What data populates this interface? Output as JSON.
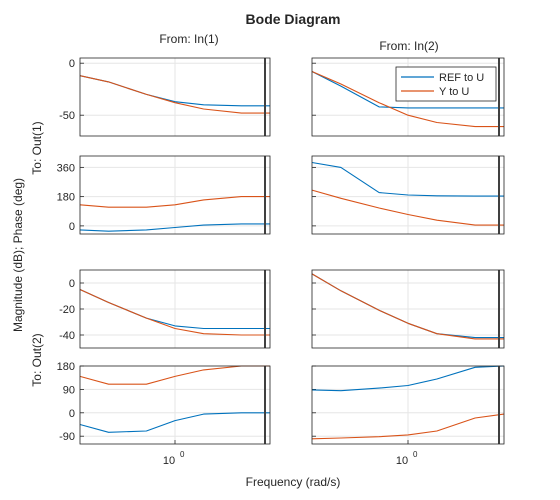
{
  "chart_data": {
    "type": "line",
    "title": "Bode Diagram",
    "xlabel": "Frequency (rad/s)",
    "ylabel": "Magnitude (dB); Phase (deg)",
    "x_scale": "log",
    "xlim": [
      0.1,
      10
    ],
    "x_ticks": [
      {
        "value": 1,
        "base": "10",
        "exp": "0"
      }
    ],
    "grid": true,
    "legend": {
      "location": "top-right",
      "entries": [
        {
          "name": "REF to U",
          "color": "#0072BD"
        },
        {
          "name": "Y to U",
          "color": "#D95319"
        }
      ]
    },
    "column_labels": [
      "From: In(1)",
      "From: In(2)"
    ],
    "row_labels": [
      "To: Out(1)",
      "To: Out(2)"
    ],
    "frequency_samples": [
      0.1,
      0.2,
      0.5,
      1,
      2,
      5,
      10
    ],
    "panels": [
      {
        "output": "Out(1)",
        "input": "In(1)",
        "quantity": "magnitude",
        "ylim": [
          -70,
          5
        ],
        "yticks": [
          0,
          -50
        ],
        "series": [
          {
            "name": "REF to U",
            "values": [
              -12,
              -18,
              -30,
              -37,
              -40,
              -41,
              -41
            ]
          },
          {
            "name": "Y to U",
            "values": [
              -12,
              -18,
              -30,
              -38,
              -44,
              -48,
              -48
            ]
          }
        ]
      },
      {
        "output": "Out(1)",
        "input": "In(2)",
        "quantity": "magnitude",
        "ylim": [
          -70,
          5
        ],
        "yticks": [
          0,
          -50
        ],
        "series": [
          {
            "name": "REF to U",
            "values": [
              -8,
              -22,
              -42,
              -43,
              -43,
              -43,
              -43
            ]
          },
          {
            "name": "Y to U",
            "values": [
              -8,
              -20,
              -38,
              -50,
              -57,
              -61,
              -61
            ]
          }
        ]
      },
      {
        "output": "Out(1)",
        "input": "In(1)",
        "quantity": "phase",
        "ylim": [
          -50,
          430
        ],
        "yticks": [
          360,
          180,
          0
        ],
        "series": [
          {
            "name": "REF to U",
            "values": [
              -25,
              -33,
              -25,
              -10,
              5,
              12,
              12
            ]
          },
          {
            "name": "Y to U",
            "values": [
              130,
              115,
              115,
              130,
              160,
              180,
              180
            ]
          }
        ]
      },
      {
        "output": "Out(1)",
        "input": "In(2)",
        "quantity": "phase",
        "ylim": [
          -50,
          430
        ],
        "yticks": [
          360,
          180,
          0
        ],
        "series": [
          {
            "name": "REF to U",
            "values": [
              390,
              360,
              205,
              190,
              185,
              183,
              183
            ]
          },
          {
            "name": "Y to U",
            "values": [
              220,
              170,
              110,
              70,
              35,
              5,
              5
            ]
          }
        ]
      },
      {
        "output": "Out(2)",
        "input": "In(1)",
        "quantity": "magnitude",
        "ylim": [
          -50,
          10
        ],
        "yticks": [
          0,
          -20,
          -40
        ],
        "series": [
          {
            "name": "REF to U",
            "values": [
              -5,
              -15,
              -27,
              -33,
              -35,
              -35,
              -35
            ]
          },
          {
            "name": "Y to U",
            "values": [
              -5,
              -15,
              -27,
              -35,
              -39,
              -40,
              -40
            ]
          }
        ]
      },
      {
        "output": "Out(2)",
        "input": "In(2)",
        "quantity": "magnitude",
        "ylim": [
          -50,
          10
        ],
        "yticks": [
          0,
          -20,
          -40
        ],
        "series": [
          {
            "name": "REF to U",
            "values": [
              7,
              -6,
              -21,
              -31,
              -39,
              -42,
              -42
            ]
          },
          {
            "name": "Y to U",
            "values": [
              7,
              -6,
              -21,
              -31,
              -39,
              -43,
              -43
            ]
          }
        ]
      },
      {
        "output": "Out(2)",
        "input": "In(1)",
        "quantity": "phase",
        "ylim": [
          -120,
          180
        ],
        "yticks": [
          180,
          90,
          0,
          -90
        ],
        "series": [
          {
            "name": "REF to U",
            "values": [
              -45,
              -75,
              -70,
              -30,
              -5,
              0,
              0
            ]
          },
          {
            "name": "Y to U",
            "values": [
              140,
              110,
              110,
              140,
              165,
              180,
              180
            ]
          }
        ]
      },
      {
        "output": "Out(2)",
        "input": "In(2)",
        "quantity": "phase",
        "ylim": [
          -120,
          180
        ],
        "yticks": [
          180,
          90,
          0,
          -90
        ],
        "series": [
          {
            "name": "REF to U",
            "values": [
              88,
              85,
              95,
              105,
              130,
              175,
              180
            ]
          },
          {
            "name": "Y to U",
            "values": [
              -100,
              -97,
              -92,
              -85,
              -70,
              -20,
              -5
            ]
          }
        ]
      }
    ]
  }
}
